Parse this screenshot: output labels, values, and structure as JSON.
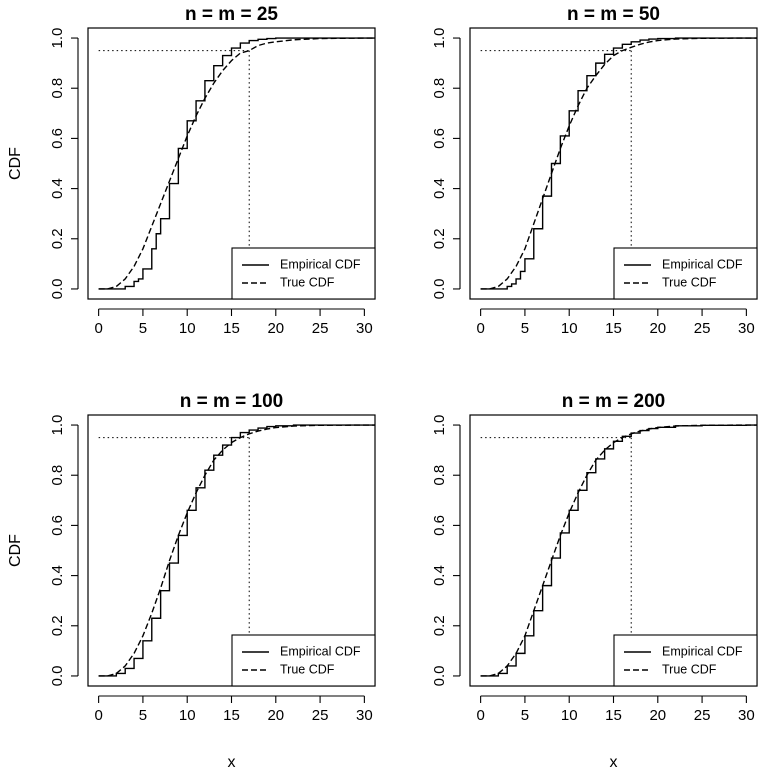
{
  "chart_data": {
    "type": "line",
    "xlabel": "x",
    "ylabel": "CDF",
    "xlim": [
      -1.2,
      31.2
    ],
    "ylim": [
      -0.04,
      1.04
    ],
    "x_ticks": [
      0,
      5,
      10,
      15,
      20,
      25,
      30
    ],
    "y_ticks": [
      0.0,
      0.2,
      0.4,
      0.6,
      0.8,
      1.0
    ],
    "x_tick_labels": [
      "0",
      "5",
      "10",
      "15",
      "20",
      "25",
      "30"
    ],
    "y_tick_labels": [
      "0.0",
      "0.2",
      "0.4",
      "0.6",
      "0.8",
      "1.0"
    ],
    "reference_lines": {
      "quantile_level": 0.95,
      "quantile_x": 17.0,
      "style": "dotted"
    },
    "legend": {
      "position": "bottom-right",
      "entries": [
        {
          "label": "Empirical CDF",
          "style": "solid"
        },
        {
          "label": "True CDF",
          "style": "dashed"
        }
      ]
    },
    "panels": [
      {
        "title": "n = m = 25",
        "series": [
          {
            "name": "Empirical CDF",
            "style": "solid",
            "step": true,
            "x": [
              0,
              2,
              3,
              4,
              4.5,
              5,
              6,
              6.5,
              7,
              8,
              9,
              10,
              11,
              12,
              13,
              14,
              15,
              16,
              17,
              18,
              19,
              20,
              22,
              25,
              30
            ],
            "y": [
              0.0,
              0.0,
              0.01,
              0.03,
              0.04,
              0.08,
              0.16,
              0.22,
              0.28,
              0.42,
              0.56,
              0.67,
              0.75,
              0.83,
              0.89,
              0.93,
              0.96,
              0.98,
              0.99,
              0.995,
              0.998,
              1.0,
              1.0,
              1.0,
              1.0
            ]
          },
          {
            "name": "True CDF",
            "style": "dashed",
            "x": [
              0,
              1,
              2,
              3,
              4,
              5,
              6,
              7,
              8,
              9,
              10,
              11,
              12,
              13,
              14,
              15,
              16,
              17,
              18,
              19,
              20,
              22,
              25,
              30
            ],
            "y": [
              0.0,
              0.0,
              0.01,
              0.04,
              0.09,
              0.16,
              0.25,
              0.34,
              0.43,
              0.52,
              0.61,
              0.69,
              0.76,
              0.82,
              0.87,
              0.91,
              0.94,
              0.95,
              0.97,
              0.98,
              0.985,
              0.993,
              0.998,
              1.0
            ]
          }
        ]
      },
      {
        "title": "n = m = 50",
        "series": [
          {
            "name": "Empirical CDF",
            "style": "solid",
            "step": true,
            "x": [
              0,
              2,
              2.5,
              3,
              3.5,
              4,
              4.5,
              5,
              6,
              7,
              8,
              9,
              10,
              11,
              12,
              13,
              14,
              15,
              16,
              17,
              18,
              19,
              20,
              22,
              25,
              30
            ],
            "y": [
              0.0,
              0.0,
              0.0,
              0.01,
              0.02,
              0.04,
              0.07,
              0.12,
              0.24,
              0.37,
              0.5,
              0.61,
              0.71,
              0.79,
              0.85,
              0.9,
              0.935,
              0.96,
              0.975,
              0.985,
              0.992,
              0.996,
              0.998,
              1.0,
              1.0,
              1.0
            ]
          },
          {
            "name": "True CDF",
            "style": "dashed",
            "x": [
              0,
              1,
              2,
              3,
              4,
              5,
              6,
              7,
              8,
              9,
              10,
              11,
              12,
              13,
              14,
              15,
              16,
              17,
              18,
              19,
              20,
              22,
              25,
              30
            ],
            "y": [
              0.0,
              0.0,
              0.01,
              0.04,
              0.09,
              0.16,
              0.26,
              0.36,
              0.46,
              0.56,
              0.65,
              0.73,
              0.8,
              0.85,
              0.895,
              0.93,
              0.95,
              0.963,
              0.975,
              0.984,
              0.99,
              0.996,
              0.999,
              1.0
            ]
          }
        ]
      },
      {
        "title": "n = m = 100",
        "series": [
          {
            "name": "Empirical CDF",
            "style": "solid",
            "step": true,
            "x": [
              0,
              1,
              2,
              3,
              4,
              5,
              6,
              7,
              8,
              9,
              10,
              11,
              12,
              13,
              14,
              15,
              16,
              17,
              18,
              19,
              20,
              22,
              25,
              30
            ],
            "y": [
              0.0,
              0.0,
              0.01,
              0.03,
              0.07,
              0.14,
              0.23,
              0.34,
              0.45,
              0.56,
              0.66,
              0.75,
              0.82,
              0.88,
              0.92,
              0.95,
              0.97,
              0.98,
              0.988,
              0.994,
              0.997,
              1.0,
              1.0,
              1.0
            ]
          },
          {
            "name": "True CDF",
            "style": "dashed",
            "x": [
              0,
              1,
              2,
              3,
              4,
              5,
              6,
              7,
              8,
              9,
              10,
              11,
              12,
              13,
              14,
              15,
              16,
              17,
              18,
              19,
              20,
              22,
              25,
              30
            ],
            "y": [
              0.0,
              0.0,
              0.01,
              0.04,
              0.09,
              0.16,
              0.25,
              0.35,
              0.46,
              0.56,
              0.65,
              0.73,
              0.8,
              0.86,
              0.9,
              0.93,
              0.95,
              0.965,
              0.976,
              0.984,
              0.99,
              0.996,
              0.999,
              1.0
            ]
          }
        ]
      },
      {
        "title": "n = m = 200",
        "series": [
          {
            "name": "Empirical CDF",
            "style": "solid",
            "step": true,
            "x": [
              0,
              1,
              2,
              3,
              4,
              5,
              6,
              7,
              8,
              9,
              10,
              11,
              12,
              13,
              14,
              15,
              16,
              17,
              18,
              19,
              20,
              22,
              25,
              30
            ],
            "y": [
              0.0,
              0.0,
              0.01,
              0.04,
              0.09,
              0.16,
              0.26,
              0.36,
              0.47,
              0.57,
              0.66,
              0.74,
              0.81,
              0.865,
              0.905,
              0.935,
              0.955,
              0.968,
              0.978,
              0.986,
              0.991,
              0.997,
              0.999,
              1.0
            ]
          },
          {
            "name": "True CDF",
            "style": "dashed",
            "x": [
              0,
              1,
              2,
              3,
              4,
              5,
              6,
              7,
              8,
              9,
              10,
              11,
              12,
              13,
              14,
              15,
              16,
              17,
              18,
              19,
              20,
              22,
              25,
              30
            ],
            "y": [
              0.0,
              0.0,
              0.01,
              0.04,
              0.09,
              0.16,
              0.26,
              0.36,
              0.46,
              0.56,
              0.65,
              0.73,
              0.8,
              0.86,
              0.9,
              0.93,
              0.95,
              0.965,
              0.976,
              0.984,
              0.99,
              0.996,
              0.999,
              1.0
            ]
          }
        ]
      }
    ]
  }
}
